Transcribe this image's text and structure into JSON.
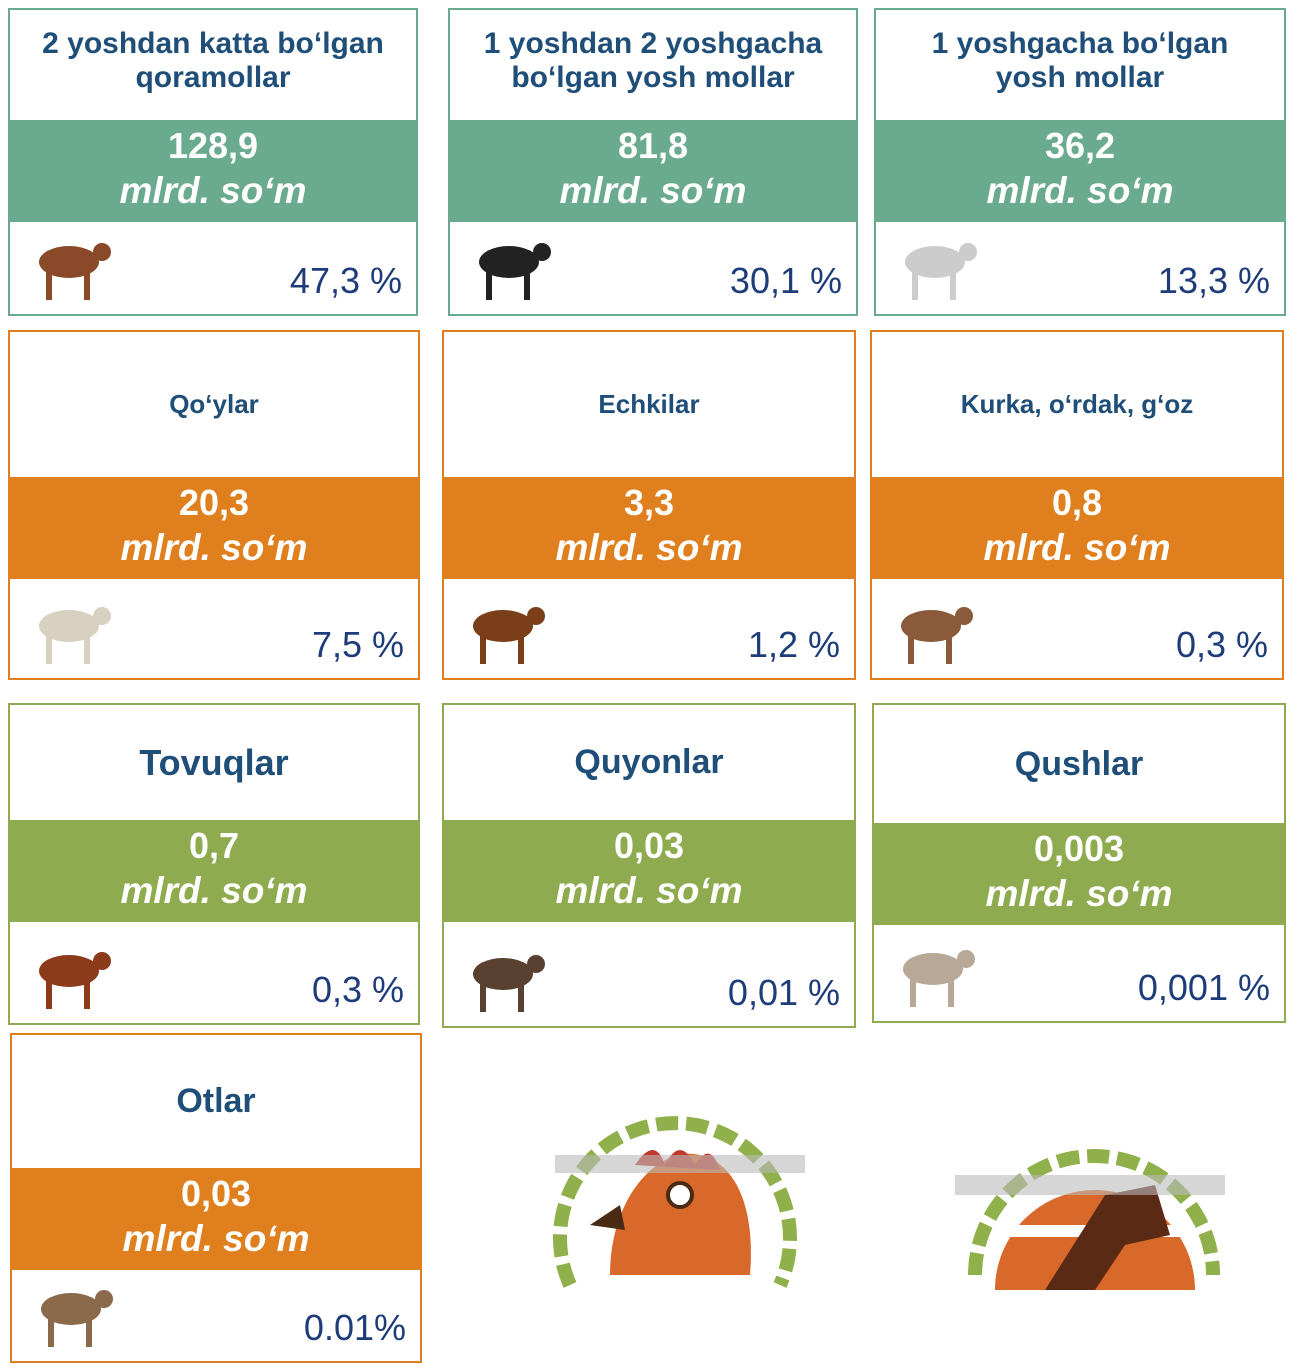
{
  "cards": [
    {
      "title": "2 yoshdan katta bo‘lgan qoramollar",
      "value": "128,9",
      "unit": "mlrd. so‘m",
      "percent": "47,3 %",
      "color": "#6aaa8e"
    },
    {
      "title": "1 yoshdan 2 yoshgacha bo‘lgan yosh mollar",
      "value": "81,8",
      "unit": "mlrd. so‘m",
      "percent": "30,1 %",
      "color": "#6aaa8e"
    },
    {
      "title": "1 yoshgacha bo‘lgan yosh mollar",
      "value": "36,2",
      "unit": "mlrd. so‘m",
      "percent": "13,3 %",
      "color": "#6aaa8e"
    },
    {
      "title": "Qo‘ylar",
      "value": "20,3",
      "unit": "mlrd. so‘m",
      "percent": "7,5 %",
      "color": "#e07f1e"
    },
    {
      "title": "Echkilar",
      "value": "3,3",
      "unit": "mlrd. so‘m",
      "percent": "1,2 %",
      "color": "#e07f1e"
    },
    {
      "title": "Kurka, o‘rdak, g‘oz",
      "value": "0,8",
      "unit": "mlrd. so‘m",
      "percent": "0,3 %",
      "color": "#e07f1e"
    },
    {
      "title": "Tovuqlar",
      "value": "0,7",
      "unit": "mlrd. so‘m",
      "percent": "0,3 %",
      "color": "#8fab4f"
    },
    {
      "title": "Quyonlar",
      "value": "0,03",
      "unit": "mlrd. so‘m",
      "percent": "0,01 %",
      "color": "#8fab4f"
    },
    {
      "title": "Qushlar",
      "value": "0,003",
      "unit": "mlrd. so‘m",
      "percent": "0,001 %",
      "color": "#8fab4f"
    },
    {
      "title": "Otlar",
      "value": "0,03",
      "unit": "mlrd. so‘m",
      "percent": "0.01%",
      "color": "#e07f1e"
    }
  ]
}
